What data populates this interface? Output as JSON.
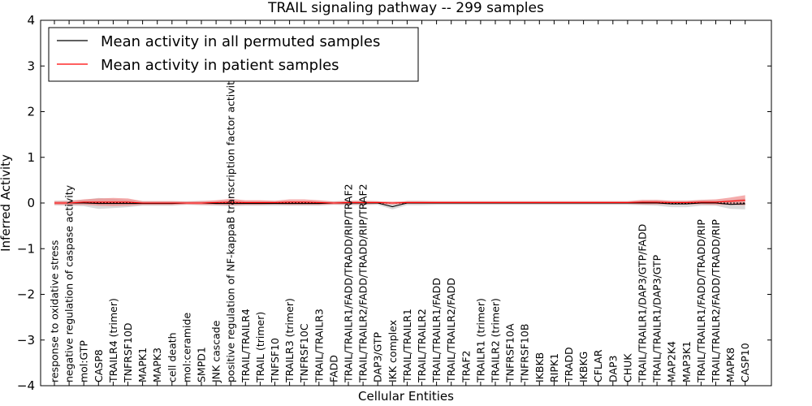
{
  "chart_data": {
    "type": "line",
    "title": "TRAIL signaling pathway -- 299 samples",
    "xlabel": "Cellular Entities",
    "ylabel": "Inferred Activity",
    "ylim": [
      -4,
      4
    ],
    "yticks": [
      -4,
      -3,
      -2,
      -1,
      0,
      1,
      2,
      3,
      4
    ],
    "ytick_labels": [
      "−4",
      "−3",
      "−2",
      "−1",
      "0",
      "1",
      "2",
      "3",
      "4"
    ],
    "legend_position": "top-left",
    "categories": [
      "response to oxidative stress",
      "negative regulation of caspase activity",
      "mol:GTP",
      "CASP8",
      "TRAILR4 (trimer)",
      "TNFRSF10D",
      "MAPK1",
      "MAPK3",
      "cell death",
      "mol:ceramide",
      "SMPD1",
      "JNK cascade",
      "positive regulation of NF-kappaB transcription factor activity",
      "TRAIL/TRAILR4",
      "TRAIL (trimer)",
      "TNFSF10",
      "TRAILR3 (trimer)",
      "TNFRSF10C",
      "TRAIL/TRAILR3",
      "FADD",
      "TRAIL/TRAILR1/FADD/TRADD/RIP/TRAF2",
      "TRAIL/TRAILR2/FADD/TRADD/RIP/TRAF2",
      "DAP3/GTP",
      "IKK complex",
      "TRAIL/TRAILR1",
      "TRAIL/TRAILR2",
      "TRAIL/TRAILR1/FADD",
      "TRAIL/TRAILR2/FADD",
      "TRAF2",
      "TRAILR1 (trimer)",
      "TRAILR2 (trimer)",
      "TNFRSF10A",
      "TNFRSF10B",
      "IKBKB",
      "RIPK1",
      "TRADD",
      "IKBKG",
      "CFLAR",
      "DAP3",
      "CHUK",
      "TRAIL/TRAILR1/DAP3/GTP/FADD",
      "TRAIL/TRAILR1/DAP3/GTP",
      "MAP2K4",
      "MAP3K1",
      "TRAIL/TRAILR1/FADD/TRADD/RIP",
      "TRAIL/TRAILR2/FADD/TRADD/RIP",
      "MAPK8",
      "CASP10"
    ],
    "series": [
      {
        "name": "Mean activity in all permuted samples",
        "color": "#000000",
        "band_color": "#bbbbbb",
        "values": [
          0.0,
          0.0,
          0.0,
          -0.01,
          -0.01,
          -0.01,
          -0.01,
          -0.01,
          -0.01,
          0.0,
          0.0,
          -0.01,
          -0.01,
          -0.01,
          -0.01,
          -0.01,
          -0.01,
          -0.01,
          -0.01,
          0.0,
          0.0,
          0.0,
          0.0,
          -0.08,
          0.0,
          0.0,
          0.0,
          0.0,
          0.0,
          0.0,
          0.0,
          0.0,
          0.0,
          0.0,
          0.0,
          0.0,
          0.0,
          0.0,
          0.0,
          0.0,
          0.0,
          0.0,
          -0.02,
          -0.02,
          0.0,
          0.0,
          -0.03,
          -0.02
        ],
        "band": [
          0.05,
          0.06,
          0.07,
          0.12,
          0.1,
          0.08,
          0.05,
          0.05,
          0.05,
          0.04,
          0.05,
          0.05,
          0.06,
          0.05,
          0.05,
          0.05,
          0.05,
          0.05,
          0.05,
          0.04,
          0.05,
          0.05,
          0.04,
          0.06,
          0.05,
          0.05,
          0.04,
          0.04,
          0.04,
          0.04,
          0.04,
          0.04,
          0.04,
          0.04,
          0.04,
          0.04,
          0.04,
          0.04,
          0.04,
          0.04,
          0.05,
          0.06,
          0.07,
          0.07,
          0.06,
          0.06,
          0.1,
          0.12
        ]
      },
      {
        "name": "Mean activity in patient samples",
        "color": "#ff0000",
        "band_color": "#f08080",
        "values": [
          0.0,
          0.0,
          0.02,
          0.02,
          0.02,
          0.02,
          0.0,
          0.0,
          0.0,
          0.0,
          0.0,
          0.01,
          0.02,
          0.01,
          0.01,
          0.01,
          0.02,
          0.02,
          0.01,
          0.0,
          0.01,
          0.01,
          0.01,
          0.0,
          0.01,
          0.01,
          0.01,
          0.01,
          0.01,
          0.01,
          0.01,
          0.01,
          0.01,
          0.01,
          0.01,
          0.01,
          0.01,
          0.01,
          0.01,
          0.01,
          0.02,
          0.02,
          0.01,
          0.01,
          0.02,
          0.02,
          0.04,
          0.06
        ],
        "band": [
          0.04,
          0.04,
          0.06,
          0.08,
          0.09,
          0.08,
          0.04,
          0.04,
          0.04,
          0.03,
          0.04,
          0.05,
          0.07,
          0.05,
          0.05,
          0.04,
          0.06,
          0.06,
          0.05,
          0.03,
          0.04,
          0.04,
          0.03,
          0.03,
          0.03,
          0.03,
          0.03,
          0.03,
          0.03,
          0.03,
          0.03,
          0.03,
          0.03,
          0.03,
          0.03,
          0.03,
          0.03,
          0.03,
          0.03,
          0.03,
          0.05,
          0.05,
          0.04,
          0.04,
          0.05,
          0.06,
          0.08,
          0.11
        ]
      }
    ]
  }
}
